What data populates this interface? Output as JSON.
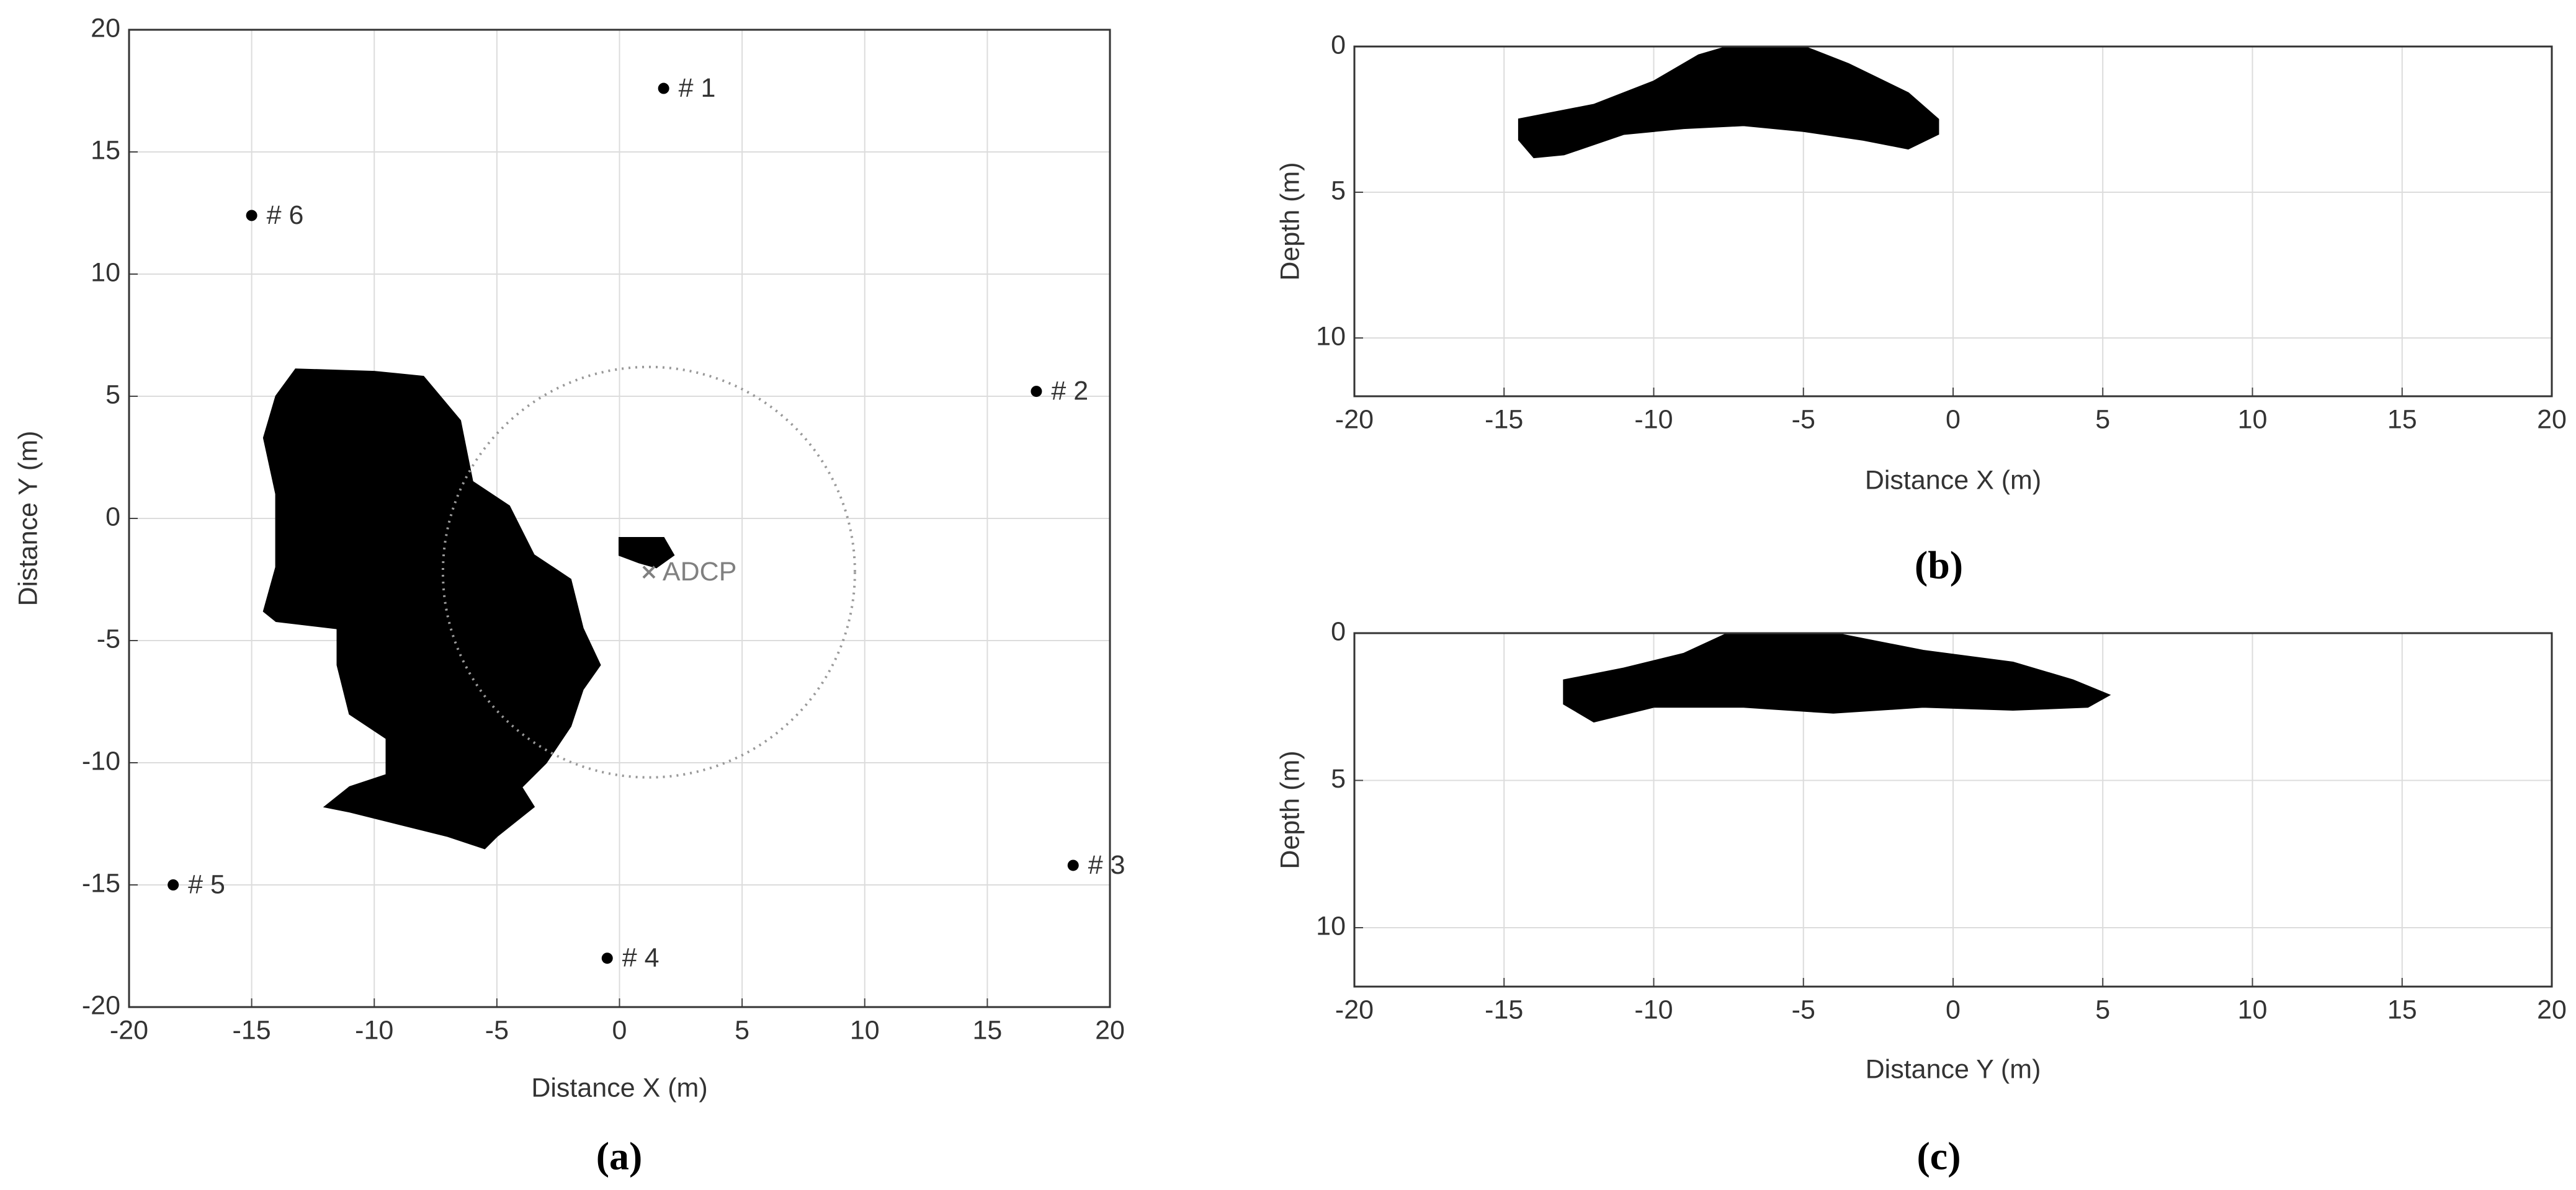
{
  "chart_data": [
    {
      "type": "scatter",
      "caption": "(a)",
      "xlabel": "Distance X (m)",
      "ylabel": "Distance Y (m)",
      "xlim": [
        -20,
        20
      ],
      "ylim": [
        -20,
        20
      ],
      "xticks": [
        -20,
        -15,
        -10,
        -5,
        0,
        5,
        10,
        15,
        20
      ],
      "yticks": [
        -20,
        -15,
        -10,
        -5,
        0,
        5,
        10,
        15,
        20
      ],
      "grid": true,
      "points": {
        "x": [
          1.8,
          17,
          18.5,
          -0.5,
          -18.2,
          -15
        ],
        "y": [
          17.6,
          5.2,
          -14.2,
          -18,
          -15,
          12.4
        ],
        "labels": [
          "# 1",
          "# 2",
          "# 3",
          "# 4",
          "# 5",
          "# 6"
        ],
        "color": "#000000"
      },
      "marker": {
        "x": 1.2,
        "y": -2.2,
        "label": "ADCP",
        "color": "#808080"
      },
      "circle": {
        "x": 1.2,
        "y": -2.2,
        "r": 8.4,
        "color": "#999999"
      },
      "regions": [
        {
          "color": "#000000",
          "x": [
            -13.2,
            -10,
            -8,
            -6.5,
            -6,
            -4.5,
            -3.5,
            -2,
            -1.5,
            -0.8,
            -1.5,
            -2,
            -3,
            -4,
            -3.5,
            -5,
            -5.5,
            -7,
            -9,
            -11,
            -12,
            -11,
            -9.5,
            -9.5,
            -11,
            -11.5,
            -11.5,
            -14,
            -14.5,
            -14,
            -14,
            -14.5,
            -14
          ],
          "y": [
            6.1,
            6,
            5.8,
            4,
            1.5,
            0.5,
            -1.5,
            -2.5,
            -4.5,
            -6,
            -7,
            -8.5,
            -10,
            -11,
            -11.8,
            -13,
            -13.5,
            -13,
            -12.5,
            -12,
            -11.8,
            -11,
            -10.5,
            -9,
            -8,
            -6,
            -4.5,
            -4.2,
            -3.8,
            -2,
            1,
            3.3,
            5
          ]
        },
        {
          "color": "#000000",
          "x": [
            0,
            1.8,
            2.2,
            1.5,
            0.8,
            0
          ],
          "y": [
            -0.8,
            -0.8,
            -1.5,
            -2,
            -1.8,
            -1.5
          ]
        }
      ]
    },
    {
      "type": "area",
      "caption": "(b)",
      "xlabel": "Distance X (m)",
      "ylabel": "Depth (m)",
      "xlim": [
        -20,
        20
      ],
      "ylim": [
        0,
        12
      ],
      "y_inverted": true,
      "xticks": [
        -20,
        -15,
        -10,
        -5,
        0,
        5,
        10,
        15,
        20
      ],
      "yticks": [
        0,
        5,
        10
      ],
      "grid": true,
      "regions": [
        {
          "color": "#000000",
          "x": [
            -14.5,
            -12,
            -10,
            -8.5,
            -7.5,
            -5,
            -3.5,
            -1.5,
            -0.5,
            -0.5,
            -1.5,
            -3,
            -5,
            -7,
            -9,
            -11,
            -13,
            -14,
            -14.5
          ],
          "y": [
            2.5,
            2,
            1.2,
            0.3,
            0,
            0,
            0.6,
            1.6,
            2.5,
            3,
            3.5,
            3.2,
            2.9,
            2.7,
            2.8,
            3,
            3.7,
            3.8,
            3.2
          ]
        }
      ]
    },
    {
      "type": "area",
      "caption": "(c)",
      "xlabel": "Distance Y (m)",
      "ylabel": "Depth (m)",
      "xlim": [
        -20,
        20
      ],
      "ylim": [
        0,
        12
      ],
      "y_inverted": true,
      "xticks": [
        -20,
        -15,
        -10,
        -5,
        0,
        5,
        10,
        15,
        20
      ],
      "yticks": [
        0,
        5,
        10
      ],
      "grid": true,
      "regions": [
        {
          "color": "#000000",
          "x": [
            -13,
            -11,
            -9,
            -7.5,
            -4,
            -1,
            2,
            4,
            5.2,
            4.5,
            2,
            -1,
            -4,
            -7,
            -10,
            -12,
            -13
          ],
          "y": [
            1.6,
            1.2,
            0.7,
            0,
            0,
            0.6,
            1,
            1.6,
            2.1,
            2.5,
            2.6,
            2.5,
            2.7,
            2.5,
            2.5,
            3,
            2.4
          ]
        }
      ]
    }
  ]
}
